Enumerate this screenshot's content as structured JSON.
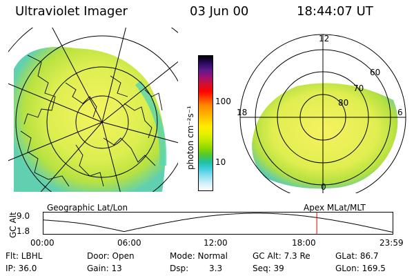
{
  "header": {
    "title": "Ultraviolet Imager",
    "date": "03 Jun 00",
    "time": "18:44:07 UT"
  },
  "left_panel": {
    "label": "Geographic Lat/Lon"
  },
  "right_panel": {
    "label": "Apex MLat/MLT",
    "mlt_labels": {
      "top": "12",
      "right": "6",
      "bottom": "0",
      "left": "18"
    },
    "lat_labels": [
      "60",
      "70",
      "80"
    ]
  },
  "colorbar": {
    "unit_label": "photon cm⁻²s⁻¹",
    "ticks": [
      "100",
      "10"
    ],
    "colors": [
      "#000000",
      "#2a0a5e",
      "#5b1a8c",
      "#a01070",
      "#d01030",
      "#ff0000",
      "#ff4400",
      "#ff8800",
      "#ffaa00",
      "#ffcc00",
      "#ffee00",
      "#e6f000",
      "#c0e800",
      "#90d800",
      "#50c830",
      "#20c0a0",
      "#40d0e0",
      "#90e0f0",
      "#d0f0f8",
      "#ffffff"
    ]
  },
  "altitude_plot": {
    "axis_label": "GC Alt",
    "y_ticks": [
      "9.0",
      "1.8"
    ],
    "x_ticks": [
      "00:00",
      "06:00",
      "12:00",
      "18:00",
      "23:59"
    ],
    "current_time_fraction": 0.7813,
    "marker_color": "#dd0000"
  },
  "info": {
    "flt": "Flt: LBHL",
    "ip": "IP: 36.0",
    "door": "Door: Open",
    "gain": "Gain: 13",
    "mode": "Mode: Normal",
    "dsp_label": "Dsp:",
    "dsp_value": "3.3",
    "gcalt": "GC Alt: 7.3 Re",
    "seq": "Seq: 39",
    "glat": "GLat: 86.7",
    "glon": "GLon: 169.5"
  },
  "colors": {
    "aurora_core": "#e8f24a",
    "aurora_mid": "#c8e840",
    "aurora_edge": "#58d4b0"
  }
}
